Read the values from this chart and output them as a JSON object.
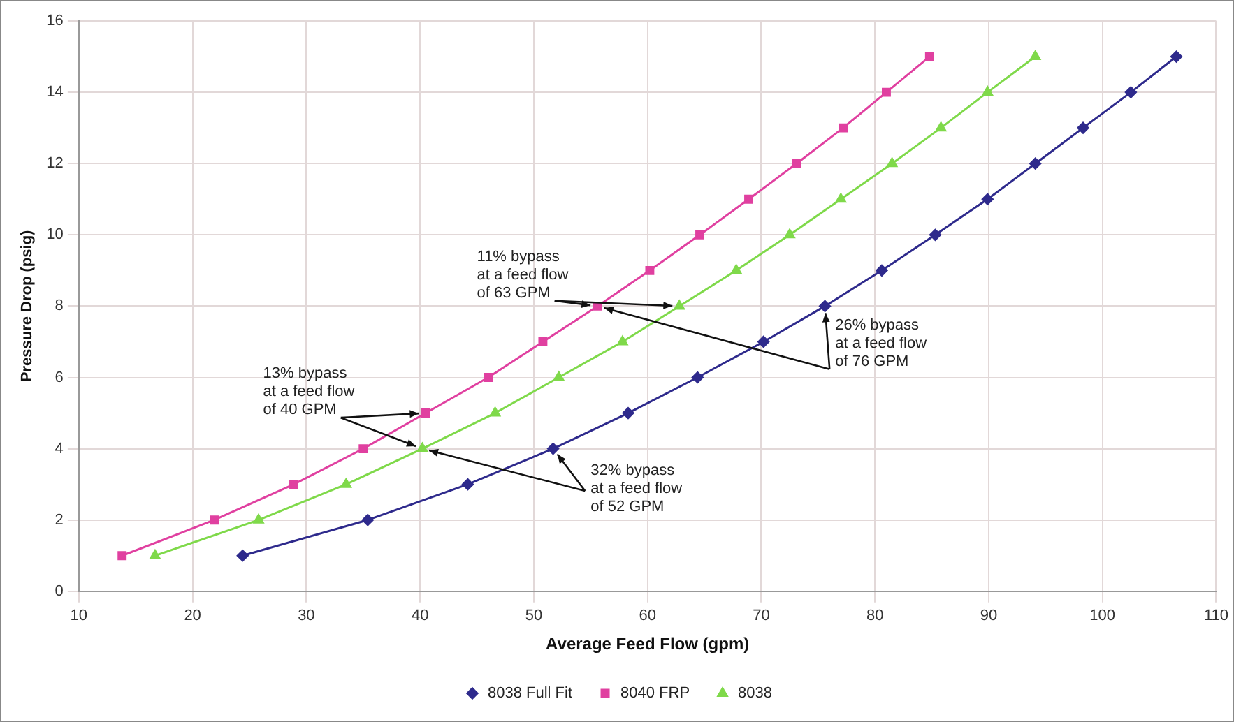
{
  "chart_data": {
    "type": "line",
    "xlabel": "Average Feed Flow (gpm)",
    "ylabel": "Pressure Drop (psig)",
    "xlim": [
      10,
      110
    ],
    "xticks": [
      10,
      20,
      30,
      40,
      50,
      60,
      70,
      80,
      90,
      100,
      110
    ],
    "ylim": [
      0,
      16
    ],
    "yticks": [
      0,
      2,
      4,
      6,
      8,
      10,
      12,
      14,
      16
    ],
    "grid": true,
    "legend": "bottom",
    "line_style": "solid",
    "series": [
      {
        "name": "8038 Full Fit",
        "color": "#2e2a8c",
        "marker": "diamond",
        "x": [
          24.4,
          35.4,
          44.2,
          51.7,
          58.3,
          64.4,
          70.2,
          75.6,
          80.6,
          85.3,
          89.9,
          94.1,
          98.3,
          102.5,
          106.5
        ],
        "values": [
          1,
          2,
          3,
          4,
          5,
          6,
          7,
          8,
          9,
          10,
          11,
          12,
          13,
          14,
          15
        ]
      },
      {
        "name": "8040 FRP",
        "color": "#e040a0",
        "marker": "square",
        "x": [
          13.8,
          21.9,
          28.9,
          35.0,
          40.5,
          46.0,
          50.8,
          55.6,
          60.2,
          64.6,
          68.9,
          73.1,
          77.2,
          81.0,
          84.8
        ],
        "values": [
          1,
          2,
          3,
          4,
          5,
          6,
          7,
          8,
          9,
          10,
          11,
          12,
          13,
          14,
          15
        ]
      },
      {
        "name": "8038",
        "color": "#7fd94a",
        "marker": "triangle",
        "x": [
          16.7,
          25.8,
          33.5,
          40.2,
          46.6,
          52.2,
          57.8,
          62.8,
          67.8,
          72.5,
          77.0,
          81.5,
          85.8,
          89.9,
          94.1
        ],
        "values": [
          1,
          2,
          3,
          4,
          5,
          6,
          7,
          8,
          9,
          10,
          11,
          12,
          13,
          14,
          15
        ]
      }
    ],
    "annotations": [
      {
        "text": "13% bypass\nat a feed flow\nof 40 GPM",
        "x": 40.2,
        "y": 4
      },
      {
        "text": "32% bypass\nat a feed flow\nof 52 GPM",
        "x": 51.7,
        "y": 4
      },
      {
        "text": "11% bypass\nat a feed flow\nof 63 GPM",
        "x": 55.6,
        "y": 8
      },
      {
        "text": "26% bypass\nat a feed flow\nof 76 GPM",
        "x": 75.6,
        "y": 8
      }
    ]
  }
}
